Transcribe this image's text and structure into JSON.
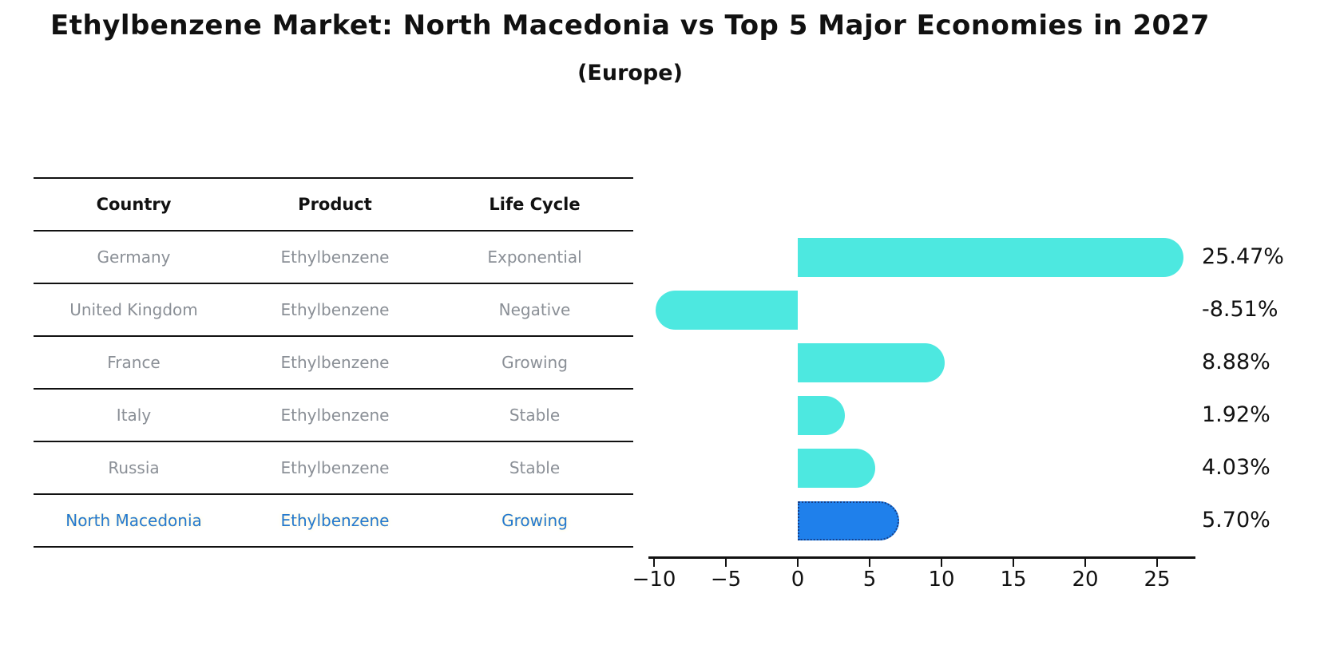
{
  "title": "Ethylbenzene Market: North Macedonia vs Top 5 Major Economies in 2027",
  "subtitle": "(Europe)",
  "table": {
    "headers": [
      "Country",
      "Product",
      "Life Cycle"
    ],
    "rows": [
      {
        "country": "Germany",
        "product": "Ethylbenzene",
        "life_cycle": "Exponential",
        "highlight": false
      },
      {
        "country": "United Kingdom",
        "product": "Ethylbenzene",
        "life_cycle": "Negative",
        "highlight": false
      },
      {
        "country": "France",
        "product": "Ethylbenzene",
        "life_cycle": "Growing",
        "highlight": false
      },
      {
        "country": "Italy",
        "product": "Ethylbenzene",
        "life_cycle": "Stable",
        "highlight": false
      },
      {
        "country": "Russia",
        "product": "Ethylbenzene",
        "life_cycle": "Stable",
        "highlight": false
      },
      {
        "country": "North Macedonia",
        "product": "Ethylbenzene",
        "life_cycle": "Growing",
        "highlight": true
      }
    ]
  },
  "chart_data": {
    "type": "bar",
    "orientation": "horizontal",
    "title": "Ethylbenzene Market: North Macedonia vs Top 5 Major Economies in 2027",
    "subtitle": "(Europe)",
    "categories": [
      "Germany",
      "United Kingdom",
      "France",
      "Italy",
      "Russia",
      "North Macedonia"
    ],
    "values": [
      25.47,
      -8.51,
      8.88,
      1.92,
      4.03,
      5.7
    ],
    "value_labels": [
      "25.47%",
      "-8.51%",
      "8.88%",
      "1.92%",
      "4.03%",
      "5.70%"
    ],
    "unit": "percent CAGR",
    "x_ticks": [
      -10,
      -5,
      0,
      5,
      10,
      15,
      20,
      25
    ],
    "x_tick_labels": [
      "−10",
      "−5",
      "0",
      "5",
      "10",
      "15",
      "20",
      "25"
    ],
    "xlim": [
      -10.4,
      27.7
    ],
    "grid": false,
    "legend": false,
    "highlight_index": 5,
    "bar_style": "rounded-end capsule; highlighted bar has dotted dark-blue edge"
  },
  "colors": {
    "bar_default": "#4DE8E0",
    "bar_highlight_fill": "#1F80EB",
    "bar_highlight_border": "#15418C",
    "highlight_text": "#2479CE",
    "table_text": "#8a8f96",
    "heading_text": "#111111",
    "background": "#ffffff"
  }
}
